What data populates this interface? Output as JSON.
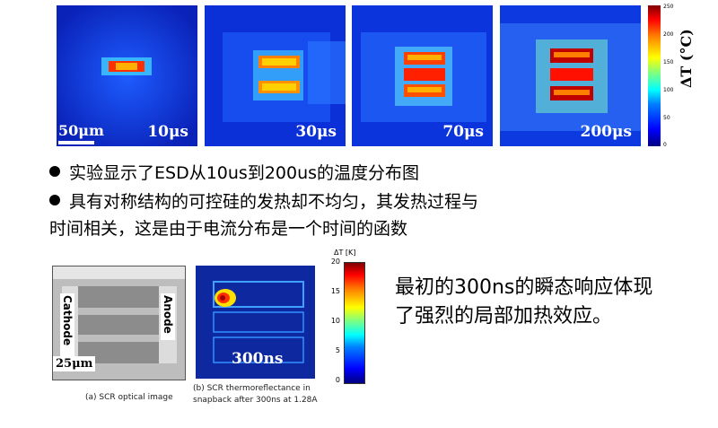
{
  "thermal_images": [
    {
      "time": "10μs",
      "level": 1
    },
    {
      "time": "30μs",
      "level": 2
    },
    {
      "time": "70μs",
      "level": 3
    },
    {
      "time": "200μs",
      "level": 4
    }
  ],
  "scale_bar_top": "50μm",
  "colorbar_top": {
    "ticks": [
      "250",
      "200",
      "150",
      "100",
      "50",
      "0"
    ],
    "label": "ΔT (°C)"
  },
  "bullets": [
    "实验显示了ESD从10us到200us的温度分布图",
    "具有对称结构的可控硅的发热却不均匀，其发热过程与",
    "时间相关，这是由于电流分布是一个时间的函数"
  ],
  "optical_image": {
    "cathode": "Cathode",
    "anode": "Anode",
    "scale": "25μm",
    "caption": "(a) SCR optical image"
  },
  "thermo_image": {
    "time": "300ns",
    "caption_line1": "(b) SCR thermoreflectance in",
    "caption_line2": "snapback after 300ns at 1.28A"
  },
  "colorbar_bottom": {
    "label": "ΔT [K]",
    "ticks": [
      "20",
      "15",
      "10",
      "5",
      "0"
    ]
  },
  "right_text": {
    "line1": "最初的300ns的瞬态响应体现",
    "line2": "了强烈的局部加热效应。"
  },
  "colors": {
    "thermal_bg": "#0a2fd0",
    "hot": "#ff2000"
  }
}
